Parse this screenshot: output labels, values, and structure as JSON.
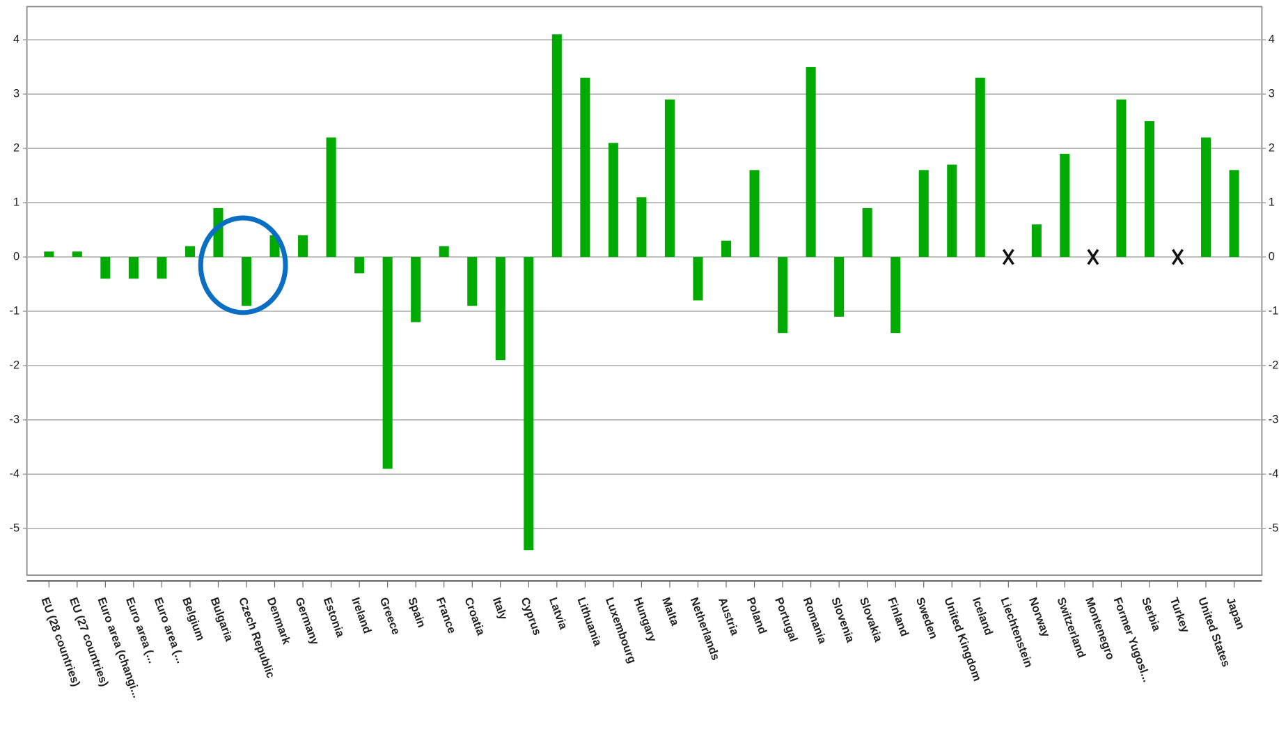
{
  "chart_data": {
    "type": "bar",
    "categories": [
      "EU (28 countries)",
      "EU (27 countries)",
      "Euro area (changi...",
      "Euro area (...",
      "Euro area (...",
      "Belgium",
      "Bulgaria",
      "Czech Republic",
      "Denmark",
      "Germany",
      "Estonia",
      "Ireland",
      "Greece",
      "Spain",
      "France",
      "Croatia",
      "Italy",
      "Cyprus",
      "Latvia",
      "Lithuania",
      "Luxembourg",
      "Hungary",
      "Malta",
      "Netherlands",
      "Austria",
      "Poland",
      "Portugal",
      "Romania",
      "Slovenia",
      "Slovakia",
      "Finland",
      "Sweden",
      "United Kingdom",
      "Iceland",
      "Liechtenstein",
      "Norway",
      "Switzerland",
      "Montenegro",
      "Former Yugosl...",
      "Serbia",
      "Turkey",
      "United States",
      "Japan"
    ],
    "values": [
      0.1,
      0.1,
      -0.4,
      -0.4,
      -0.4,
      0.2,
      0.9,
      -0.9,
      0.4,
      0.4,
      2.2,
      -0.3,
      -3.9,
      -1.2,
      0.2,
      -0.9,
      -1.9,
      -5.4,
      4.1,
      3.3,
      2.1,
      1.1,
      2.9,
      -0.8,
      0.3,
      1.6,
      -1.4,
      3.5,
      -1.1,
      0.9,
      -1.4,
      1.6,
      1.7,
      3.3,
      null,
      0.6,
      1.9,
      null,
      2.9,
      2.5,
      null,
      2.2,
      1.6
    ],
    "color": "#00aa00",
    "ylim": [
      -5.86,
      4.61
    ],
    "yticks": [
      -5,
      -4,
      -3,
      -2,
      -1,
      0,
      1,
      2,
      3,
      4
    ],
    "y2lim": [
      -5.86,
      4.61
    ],
    "y2ticks": [
      -5,
      -4,
      -3,
      -2,
      -1,
      0,
      1,
      2,
      3,
      4
    ],
    "grid": true
  }
}
